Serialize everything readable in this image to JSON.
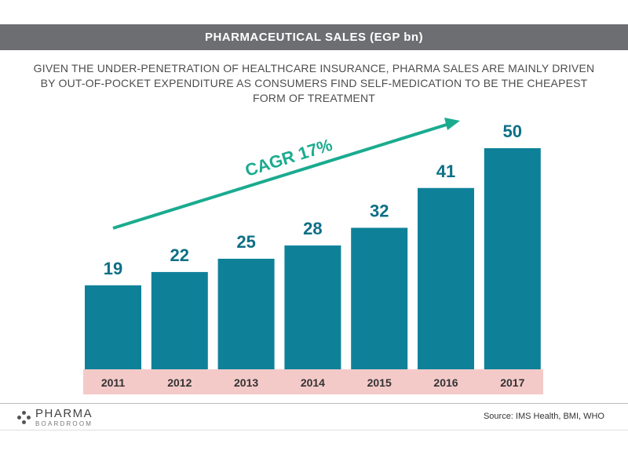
{
  "header": {
    "title": "PHARMACEUTICAL SALES (EGP bn)",
    "subtitle": "GIVEN THE UNDER-PENETRATION OF HEALTHCARE INSURANCE, PHARMA SALES ARE MAINLY DRIVEN BY OUT-OF-POCKET EXPENDITURE AS CONSUMERS FIND SELF-MEDICATION TO BE THE CHEAPEST FORM OF TREATMENT"
  },
  "chart_data": {
    "type": "bar",
    "categories": [
      "2011",
      "2012",
      "2013",
      "2014",
      "2015",
      "2016",
      "2017"
    ],
    "values": [
      19,
      22,
      25,
      28,
      32,
      41,
      50
    ],
    "title": "PHARMACEUTICAL SALES (EGP bn)",
    "annotation": "CAGR 17%",
    "ylim": [
      0,
      50
    ],
    "grid": false,
    "legend": "none",
    "colors": {
      "bar": "#0e8199",
      "value_label": "#0e6f86",
      "axis_band": "#f4cac9",
      "arrow": "#1aab8f"
    }
  },
  "footer": {
    "logo_main": "PHARMA",
    "logo_sub": "BOARDROOM",
    "logo_icon": "dots-logo-icon",
    "source": "Source:  IMS Health, BMI, WHO"
  }
}
